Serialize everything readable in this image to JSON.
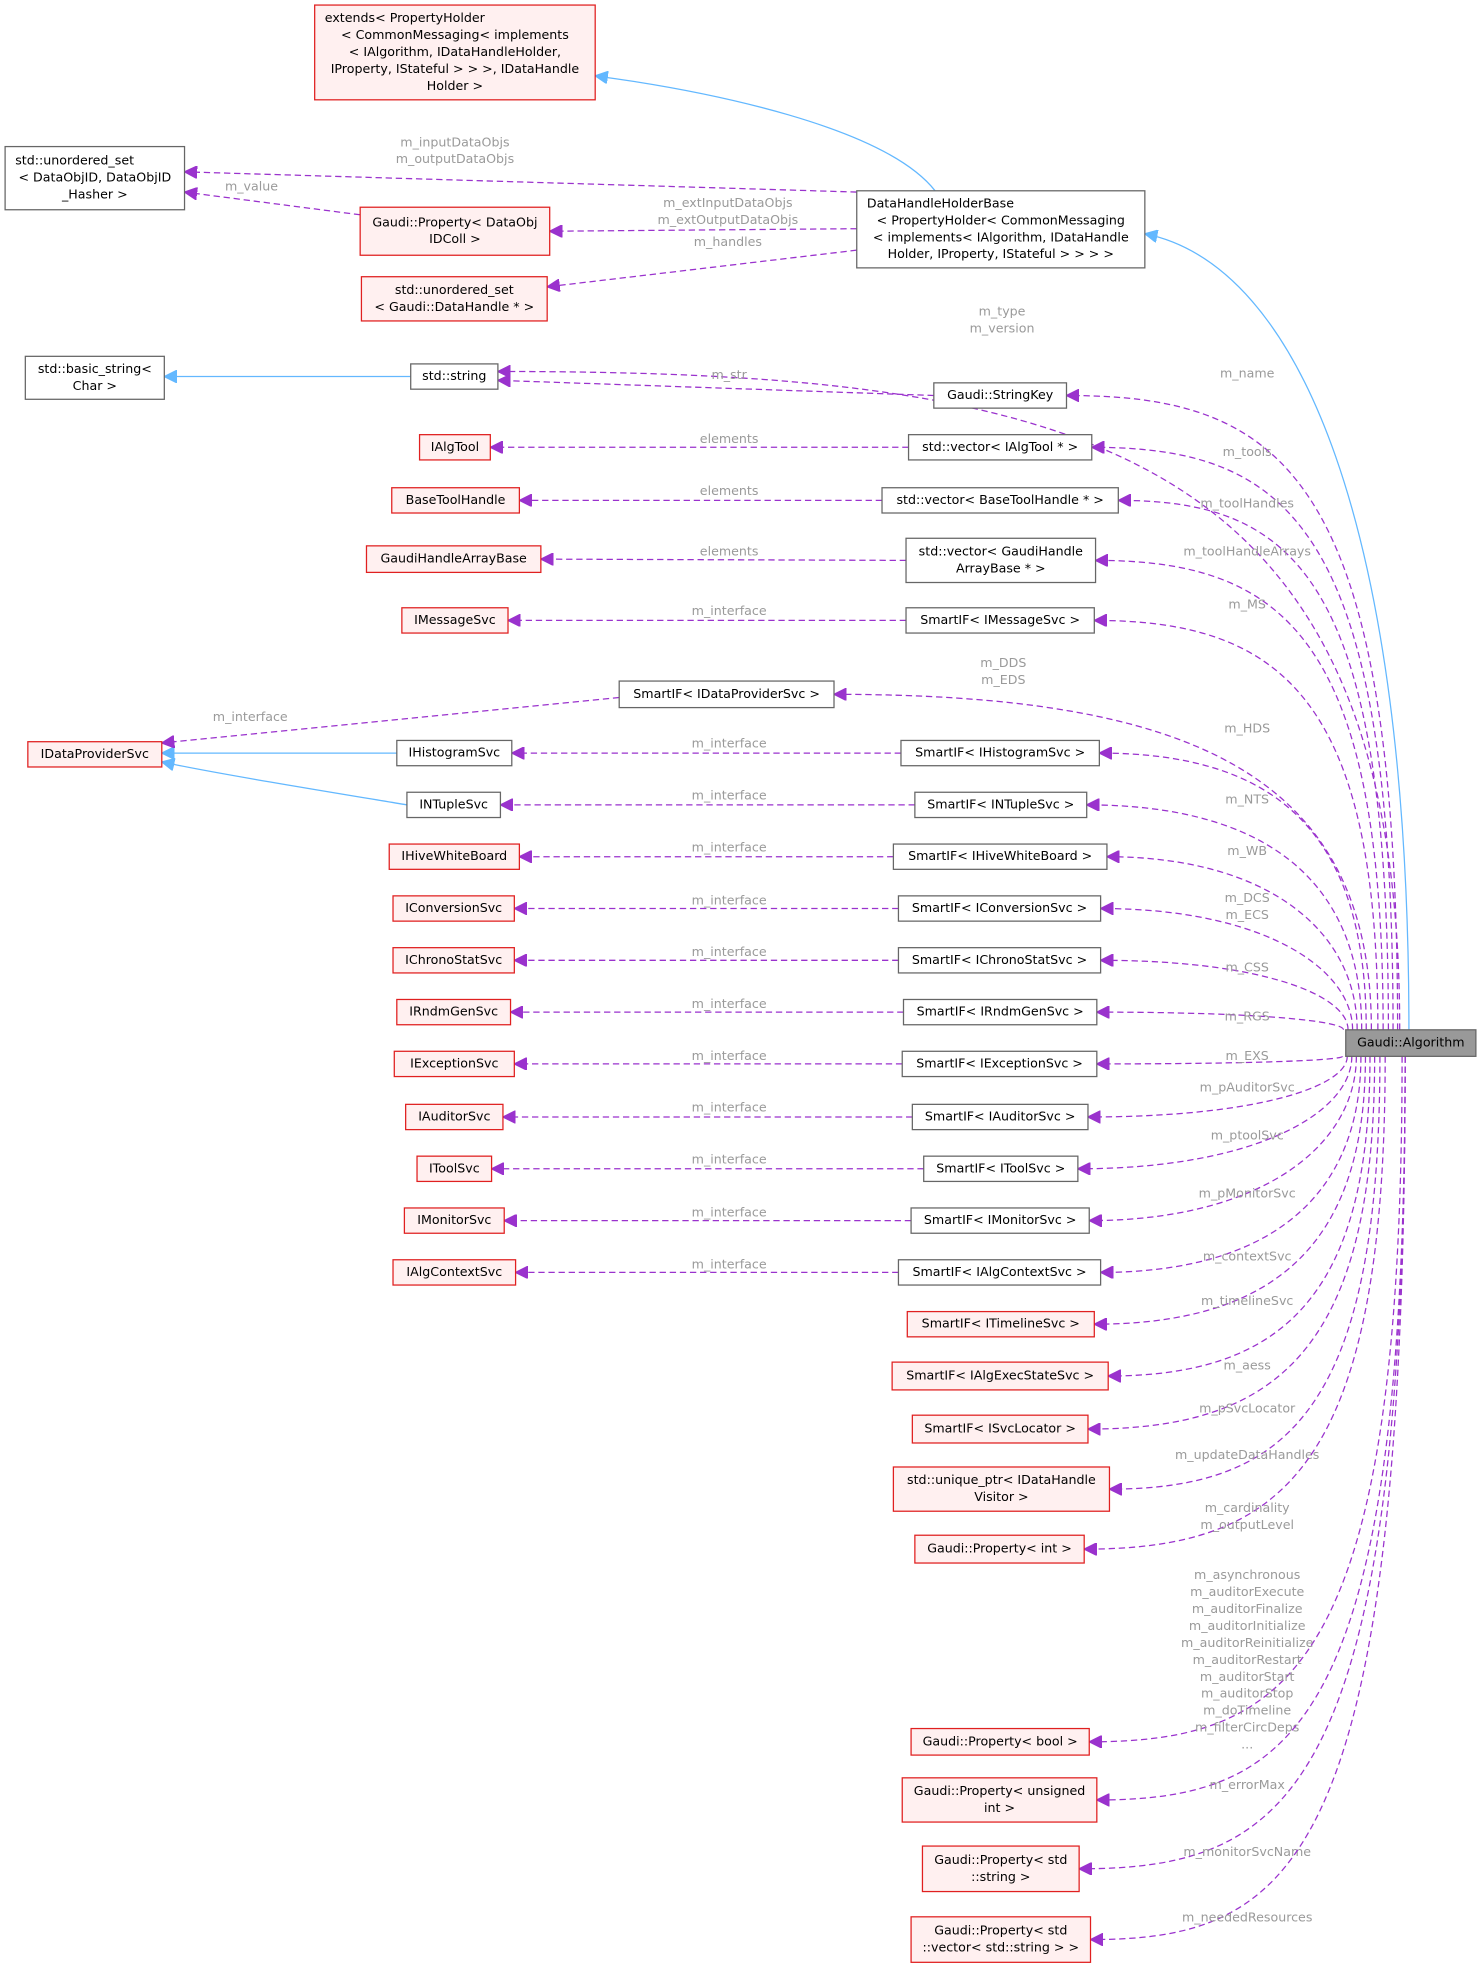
{
  "nodes": [
    {
      "label": [
        "Gaudi::Algorithm"
      ]
    },
    {
      "label": [
        "extends< PropertyHolder",
        "< CommonMessaging< implements",
        "< IAlgorithm, IDataHandleHolder,",
        " IProperty, IStateful > > >, IDataHandle",
        "Holder >"
      ]
    },
    {
      "label": [
        "DataHandleHolderBase",
        "< PropertyHolder< CommonMessaging",
        "< implements< IAlgorithm, IDataHandle",
        "Holder, IProperty, IStateful > > > >"
      ]
    },
    {
      "label": [
        "std::unordered_set",
        "< DataObjID, DataObjID",
        "_Hasher >"
      ]
    },
    {
      "label": [
        "Gaudi::Property< DataObj",
        "IDColl >"
      ]
    },
    {
      "label": [
        "std::unordered_set",
        "< Gaudi::DataHandle * >"
      ]
    },
    {
      "label": [
        "std::basic_string<",
        "Char >"
      ]
    },
    {
      "label": [
        "std::string"
      ]
    },
    {
      "label": [
        "Gaudi::StringKey"
      ]
    },
    {
      "label": [
        "IAlgTool"
      ]
    },
    {
      "label": [
        "std::vector< IAlgTool * >"
      ]
    },
    {
      "label": [
        "BaseToolHandle"
      ]
    },
    {
      "label": [
        "std::vector< BaseToolHandle * >"
      ]
    },
    {
      "label": [
        "GaudiHandleArrayBase"
      ]
    },
    {
      "label": [
        "std::vector< GaudiHandle",
        "ArrayBase * >"
      ]
    },
    {
      "label": [
        "IMessageSvc"
      ]
    },
    {
      "label": [
        "SmartIF< IMessageSvc >"
      ]
    },
    {
      "label": [
        "SmartIF< IDataProviderSvc >"
      ]
    },
    {
      "label": [
        "IDataProviderSvc"
      ]
    },
    {
      "label": [
        "IHistogramSvc"
      ]
    },
    {
      "label": [
        "SmartIF< IHistogramSvc >"
      ]
    },
    {
      "label": [
        "INTupleSvc"
      ]
    },
    {
      "label": [
        "SmartIF< INTupleSvc >"
      ]
    },
    {
      "label": [
        "IHiveWhiteBoard"
      ]
    },
    {
      "label": [
        "SmartIF< IHiveWhiteBoard >"
      ]
    },
    {
      "label": [
        "IConversionSvc"
      ]
    },
    {
      "label": [
        "SmartIF< IConversionSvc >"
      ]
    },
    {
      "label": [
        "IChronoStatSvc"
      ]
    },
    {
      "label": [
        "SmartIF< IChronoStatSvc >"
      ]
    },
    {
      "label": [
        "IRndmGenSvc"
      ]
    },
    {
      "label": [
        "SmartIF< IRndmGenSvc >"
      ]
    },
    {
      "label": [
        "IExceptionSvc"
      ]
    },
    {
      "label": [
        "SmartIF< IExceptionSvc >"
      ]
    },
    {
      "label": [
        "IAuditorSvc"
      ]
    },
    {
      "label": [
        "SmartIF< IAuditorSvc >"
      ]
    },
    {
      "label": [
        "IToolSvc"
      ]
    },
    {
      "label": [
        "SmartIF< IToolSvc >"
      ]
    },
    {
      "label": [
        "IMonitorSvc"
      ]
    },
    {
      "label": [
        "SmartIF< IMonitorSvc >"
      ]
    },
    {
      "label": [
        "IAlgContextSvc"
      ]
    },
    {
      "label": [
        "SmartIF< IAlgContextSvc >"
      ]
    },
    {
      "label": [
        "SmartIF< ITimelineSvc >"
      ]
    },
    {
      "label": [
        "SmartIF< IAlgExecStateSvc >"
      ]
    },
    {
      "label": [
        "SmartIF< ISvcLocator >"
      ]
    },
    {
      "label": [
        "std::unique_ptr< IDataHandle",
        "Visitor >"
      ]
    },
    {
      "label": [
        "Gaudi::Property< int >"
      ]
    },
    {
      "label": [
        "Gaudi::Property< bool >"
      ]
    },
    {
      "label": [
        "Gaudi::Property< unsigned",
        "int >"
      ]
    },
    {
      "label": [
        "Gaudi::Property< std",
        "::string >"
      ]
    },
    {
      "label": [
        "Gaudi::Property< std",
        "::vector< std::string > >"
      ]
    }
  ],
  "edges": [
    {
      "label": [
        "m_inputDataObjs",
        "m_outputDataObjs"
      ]
    },
    {
      "label": [
        "m_value"
      ]
    },
    {
      "label": [
        "m_extInputDataObjs",
        "m_extOutputDataObjs"
      ]
    },
    {
      "label": [
        "m_handles"
      ]
    },
    {
      "label": [
        "m_type",
        "m_version"
      ]
    },
    {
      "label": [
        "m_str"
      ]
    },
    {
      "label": [
        "m_name"
      ]
    },
    {
      "label": [
        "elements"
      ]
    },
    {
      "label": [
        "m_tools"
      ]
    },
    {
      "label": [
        "elements"
      ]
    },
    {
      "label": [
        "m_toolHandles"
      ]
    },
    {
      "label": [
        "elements"
      ]
    },
    {
      "label": [
        "m_toolHandleArrays"
      ]
    },
    {
      "label": [
        "m_interface"
      ]
    },
    {
      "label": [
        "m_MS"
      ]
    },
    {
      "label": [
        "m_interface"
      ]
    },
    {
      "label": [
        "m_DDS",
        "m_EDS"
      ]
    },
    {
      "label": [
        "m_interface"
      ]
    },
    {
      "label": [
        "m_HDS"
      ]
    },
    {
      "label": [
        "m_interface"
      ]
    },
    {
      "label": [
        "m_NTS"
      ]
    },
    {
      "label": [
        "m_interface"
      ]
    },
    {
      "label": [
        "m_WB"
      ]
    },
    {
      "label": [
        "m_interface"
      ]
    },
    {
      "label": [
        "m_DCS",
        "m_ECS"
      ]
    },
    {
      "label": [
        "m_interface"
      ]
    },
    {
      "label": [
        "m_CSS"
      ]
    },
    {
      "label": [
        "m_interface"
      ]
    },
    {
      "label": [
        "m_RGS"
      ]
    },
    {
      "label": [
        "m_interface"
      ]
    },
    {
      "label": [
        "m_EXS"
      ]
    },
    {
      "label": [
        "m_interface"
      ]
    },
    {
      "label": [
        "m_pAuditorSvc"
      ]
    },
    {
      "label": [
        "m_interface"
      ]
    },
    {
      "label": [
        "m_ptoolSvc"
      ]
    },
    {
      "label": [
        "m_interface"
      ]
    },
    {
      "label": [
        "m_pMonitorSvc"
      ]
    },
    {
      "label": [
        "m_interface"
      ]
    },
    {
      "label": [
        "m_contextSvc"
      ]
    },
    {
      "label": [
        "m_timelineSvc"
      ]
    },
    {
      "label": [
        "m_aess"
      ]
    },
    {
      "label": [
        "m_pSvcLocator"
      ]
    },
    {
      "label": [
        "m_updateDataHandles"
      ]
    },
    {
      "label": [
        "m_cardinality",
        "m_outputLevel"
      ]
    },
    {
      "label": [
        "m_asynchronous",
        "m_auditorExecute",
        "m_auditorFinalize",
        "m_auditorInitialize",
        "m_auditorReinitialize",
        "m_auditorRestart",
        "m_auditorStart",
        "m_auditorStop",
        "m_doTimeline",
        "m_filterCircDeps",
        "..."
      ]
    },
    {
      "label": [
        "m_errorMax"
      ]
    },
    {
      "label": [
        "m_monitorSvcName"
      ]
    },
    {
      "label": [
        "m_neededResources"
      ]
    }
  ]
}
